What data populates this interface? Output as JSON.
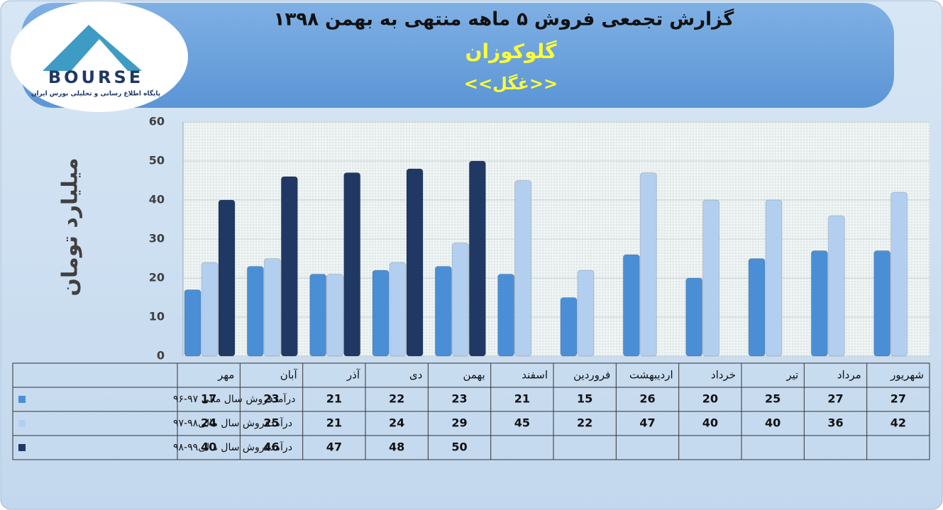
{
  "logo": {
    "name": "BOURSE",
    "tagline": "پایگاه اطلاع رسانی و تحلیلی بورس ایران"
  },
  "chart_data": {
    "type": "bar",
    "title": "گزارش تجمعی  فروش ۵ ماهه منتهی به بهمن ۱۳۹۸",
    "subtitle": "گلوکوزان",
    "symbol": "<<غگل>>",
    "y_label": "میلیارد تومان",
    "categories": [
      "مهر",
      "آبان",
      "آذر",
      "دی",
      "بهمن",
      "اسفند",
      "فروردین",
      "اردیبهشت",
      "خرداد",
      "تیر",
      "مرداد",
      "شهریور"
    ],
    "series": [
      {
        "name": "درآمدفروش سال مالی ۹۷-۹۶",
        "color": "#4a8fd6",
        "values": [
          17,
          23,
          21,
          22,
          23,
          21,
          15,
          26,
          20,
          25,
          27,
          27
        ]
      },
      {
        "name": "درآمدفروش سال مالی۹۸-۹۷",
        "color": "#b3cff0",
        "values": [
          24,
          25,
          21,
          24,
          29,
          45,
          22,
          47,
          40,
          40,
          36,
          42
        ]
      },
      {
        "name": "درآمدفروش سال مالی۹۹-۹۸",
        "color": "#1f3864",
        "values": [
          40,
          46,
          47,
          48,
          50,
          null,
          null,
          null,
          null,
          null,
          null,
          null
        ]
      }
    ],
    "ylim": [
      0,
      60
    ],
    "yticks": [
      0,
      10,
      20,
      30,
      40,
      50,
      60
    ],
    "grid": true
  }
}
